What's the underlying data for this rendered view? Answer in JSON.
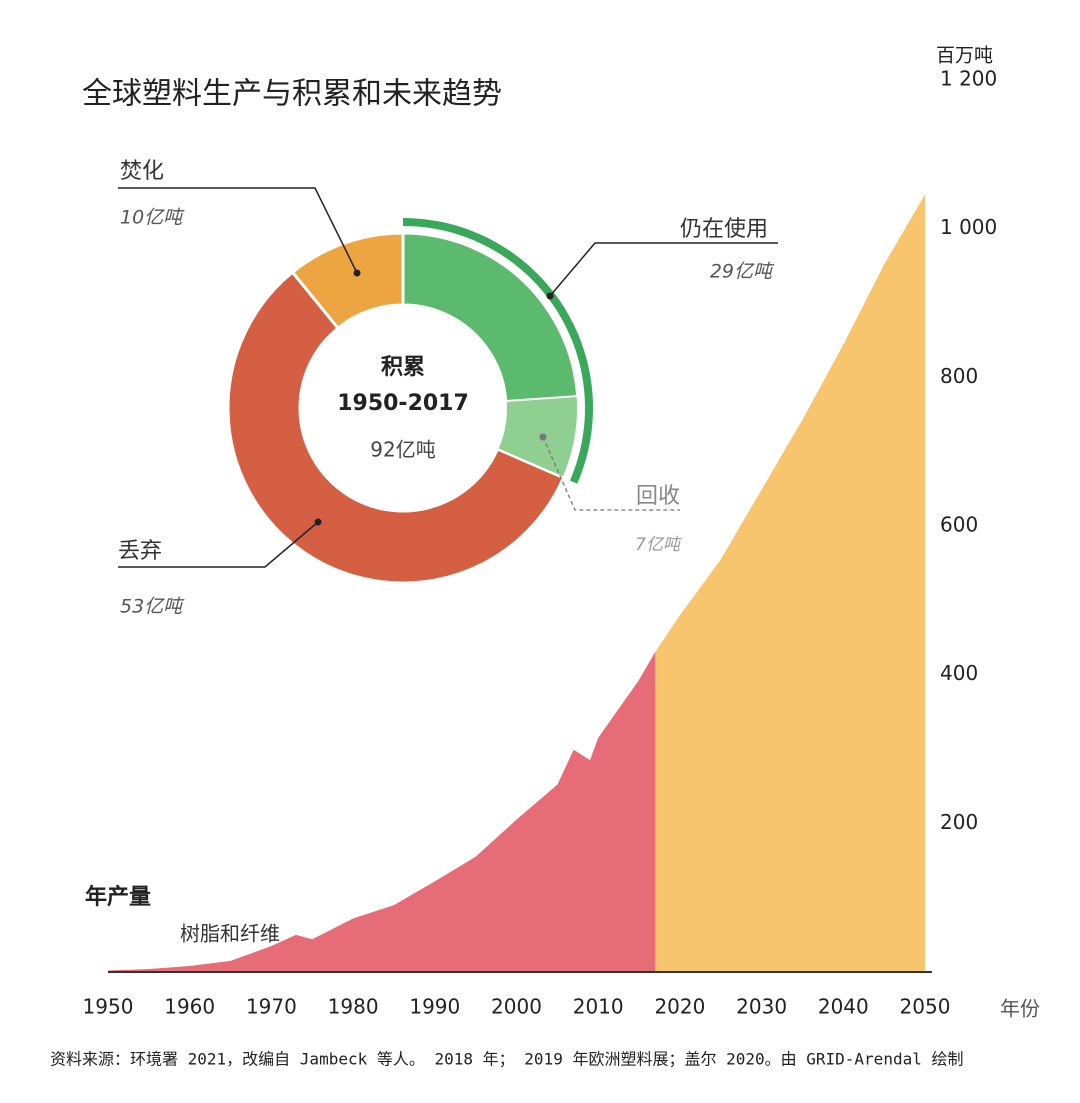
{
  "title": "全球塑料生产与积累和未来趋势",
  "source": "资料来源：环境署 2021，改编自 Jambeck 等人。 2018 年； 2019 年欧洲塑料展；盖尔 2020。由 GRID-Arendal 绘制",
  "chart_data": [
    {
      "type": "area",
      "annotation": "年产量",
      "y_unit": "百万吨",
      "x_label": "年份",
      "xlim": [
        1950,
        2050
      ],
      "xticks": [
        1950,
        1960,
        1970,
        1980,
        1990,
        2000,
        2010,
        2020,
        2030,
        2040,
        2050
      ],
      "ylim": [
        0,
        1200
      ],
      "yticks": [
        200,
        400,
        600,
        800,
        {
          "value": 1000,
          "label": "1 000"
        },
        {
          "value": 1200,
          "label": "1 200"
        }
      ],
      "grid": false,
      "series": [
        {
          "name": "树脂和纤维",
          "color": "#e66d77",
          "x": [
            1950,
            1955,
            1960,
            1965,
            1970,
            1973,
            1975,
            1980,
            1985,
            1990,
            1995,
            2000,
            2005,
            2007,
            2009,
            2010,
            2015,
            2017
          ],
          "values": [
            2,
            4,
            8,
            15,
            35,
            50,
            44,
            72,
            90,
            122,
            155,
            205,
            252,
            299,
            285,
            315,
            393,
            431
          ]
        },
        {
          "color": "#f7c56d",
          "x": [
            2017,
            2020,
            2025,
            2030,
            2035,
            2040,
            2045,
            2050
          ],
          "values": [
            431,
            480,
            555,
            649,
            743,
            844,
            952,
            1046
          ]
        }
      ]
    },
    {
      "type": "donut",
      "center_title": "积累",
      "center_period": "1950-2017",
      "center_total": "92亿吨",
      "categories": [
        "仍在使用",
        "回收",
        "焚化",
        "丢弃"
      ],
      "values": [
        29,
        7,
        10,
        53
      ],
      "value_labels": [
        "29亿吨",
        "7亿吨",
        "10亿吨",
        "53亿吨"
      ],
      "colors": [
        "#5cba6e",
        "#8fcf92",
        "#eda542",
        "#d55f42"
      ],
      "sub_of": [
        null,
        0,
        null,
        null
      ],
      "ring_order": [
        0,
        3,
        2
      ]
    }
  ]
}
